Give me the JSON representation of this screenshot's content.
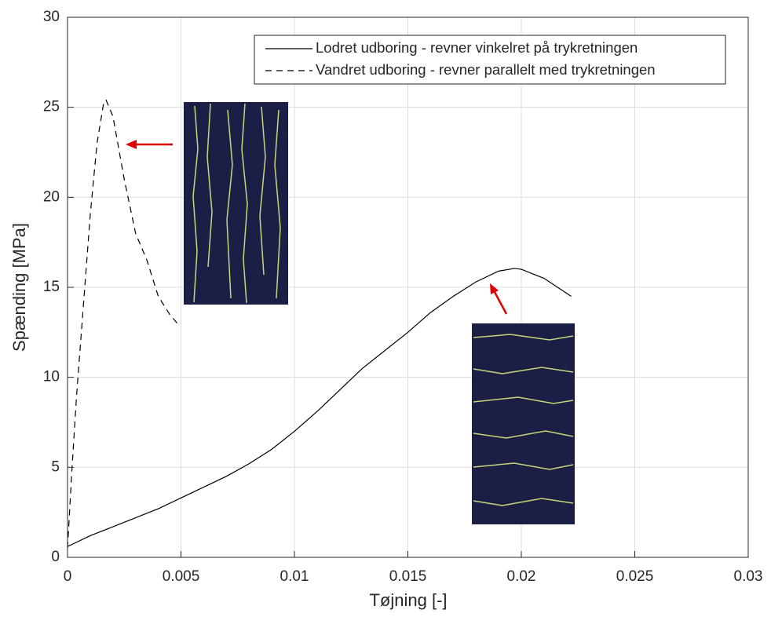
{
  "chart_data": {
    "type": "line",
    "xlabel": "Tøjning [-]",
    "ylabel": "Spænding [MPa]",
    "xlim": [
      0,
      0.03
    ],
    "xticks": [
      0,
      0.005,
      0.01,
      0.015,
      0.02,
      0.025,
      0.03
    ],
    "ylim": [
      0,
      30
    ],
    "yticks": [
      0,
      5,
      10,
      15,
      20,
      25,
      30
    ],
    "grid": true,
    "legend": "upper right",
    "series": [
      {
        "name": "Lodret udboring - revner vinkelret på trykretningen",
        "color": "#000000",
        "linestyle": "solid",
        "x": [
          0,
          0.001,
          0.002,
          0.003,
          0.004,
          0.005,
          0.006,
          0.007,
          0.008,
          0.009,
          0.01,
          0.011,
          0.012,
          0.013,
          0.014,
          0.015,
          0.016,
          0.017,
          0.018,
          0.019,
          0.0197,
          0.02,
          0.021,
          0.0222
        ],
        "values": [
          0.6,
          1.2,
          1.7,
          2.2,
          2.7,
          3.3,
          3.9,
          4.5,
          5.2,
          6.0,
          7.0,
          8.1,
          9.3,
          10.5,
          11.5,
          12.5,
          13.6,
          14.5,
          15.3,
          15.9,
          16.05,
          16.0,
          15.5,
          14.5
        ]
      },
      {
        "name": "Vandret udboring - revner parallelt med trykretningen",
        "color": "#000000",
        "linestyle": "dashed",
        "x": [
          0,
          0.0002,
          0.0004,
          0.0007,
          0.001,
          0.0013,
          0.0016,
          0.0017,
          0.002,
          0.0025,
          0.003,
          0.0035,
          0.004,
          0.0045,
          0.0049
        ],
        "values": [
          0.5,
          5,
          9,
          14,
          19,
          23,
          25.3,
          25.4,
          24.5,
          21,
          18,
          16.5,
          14.5,
          13.5,
          12.9
        ]
      }
    ]
  }
}
